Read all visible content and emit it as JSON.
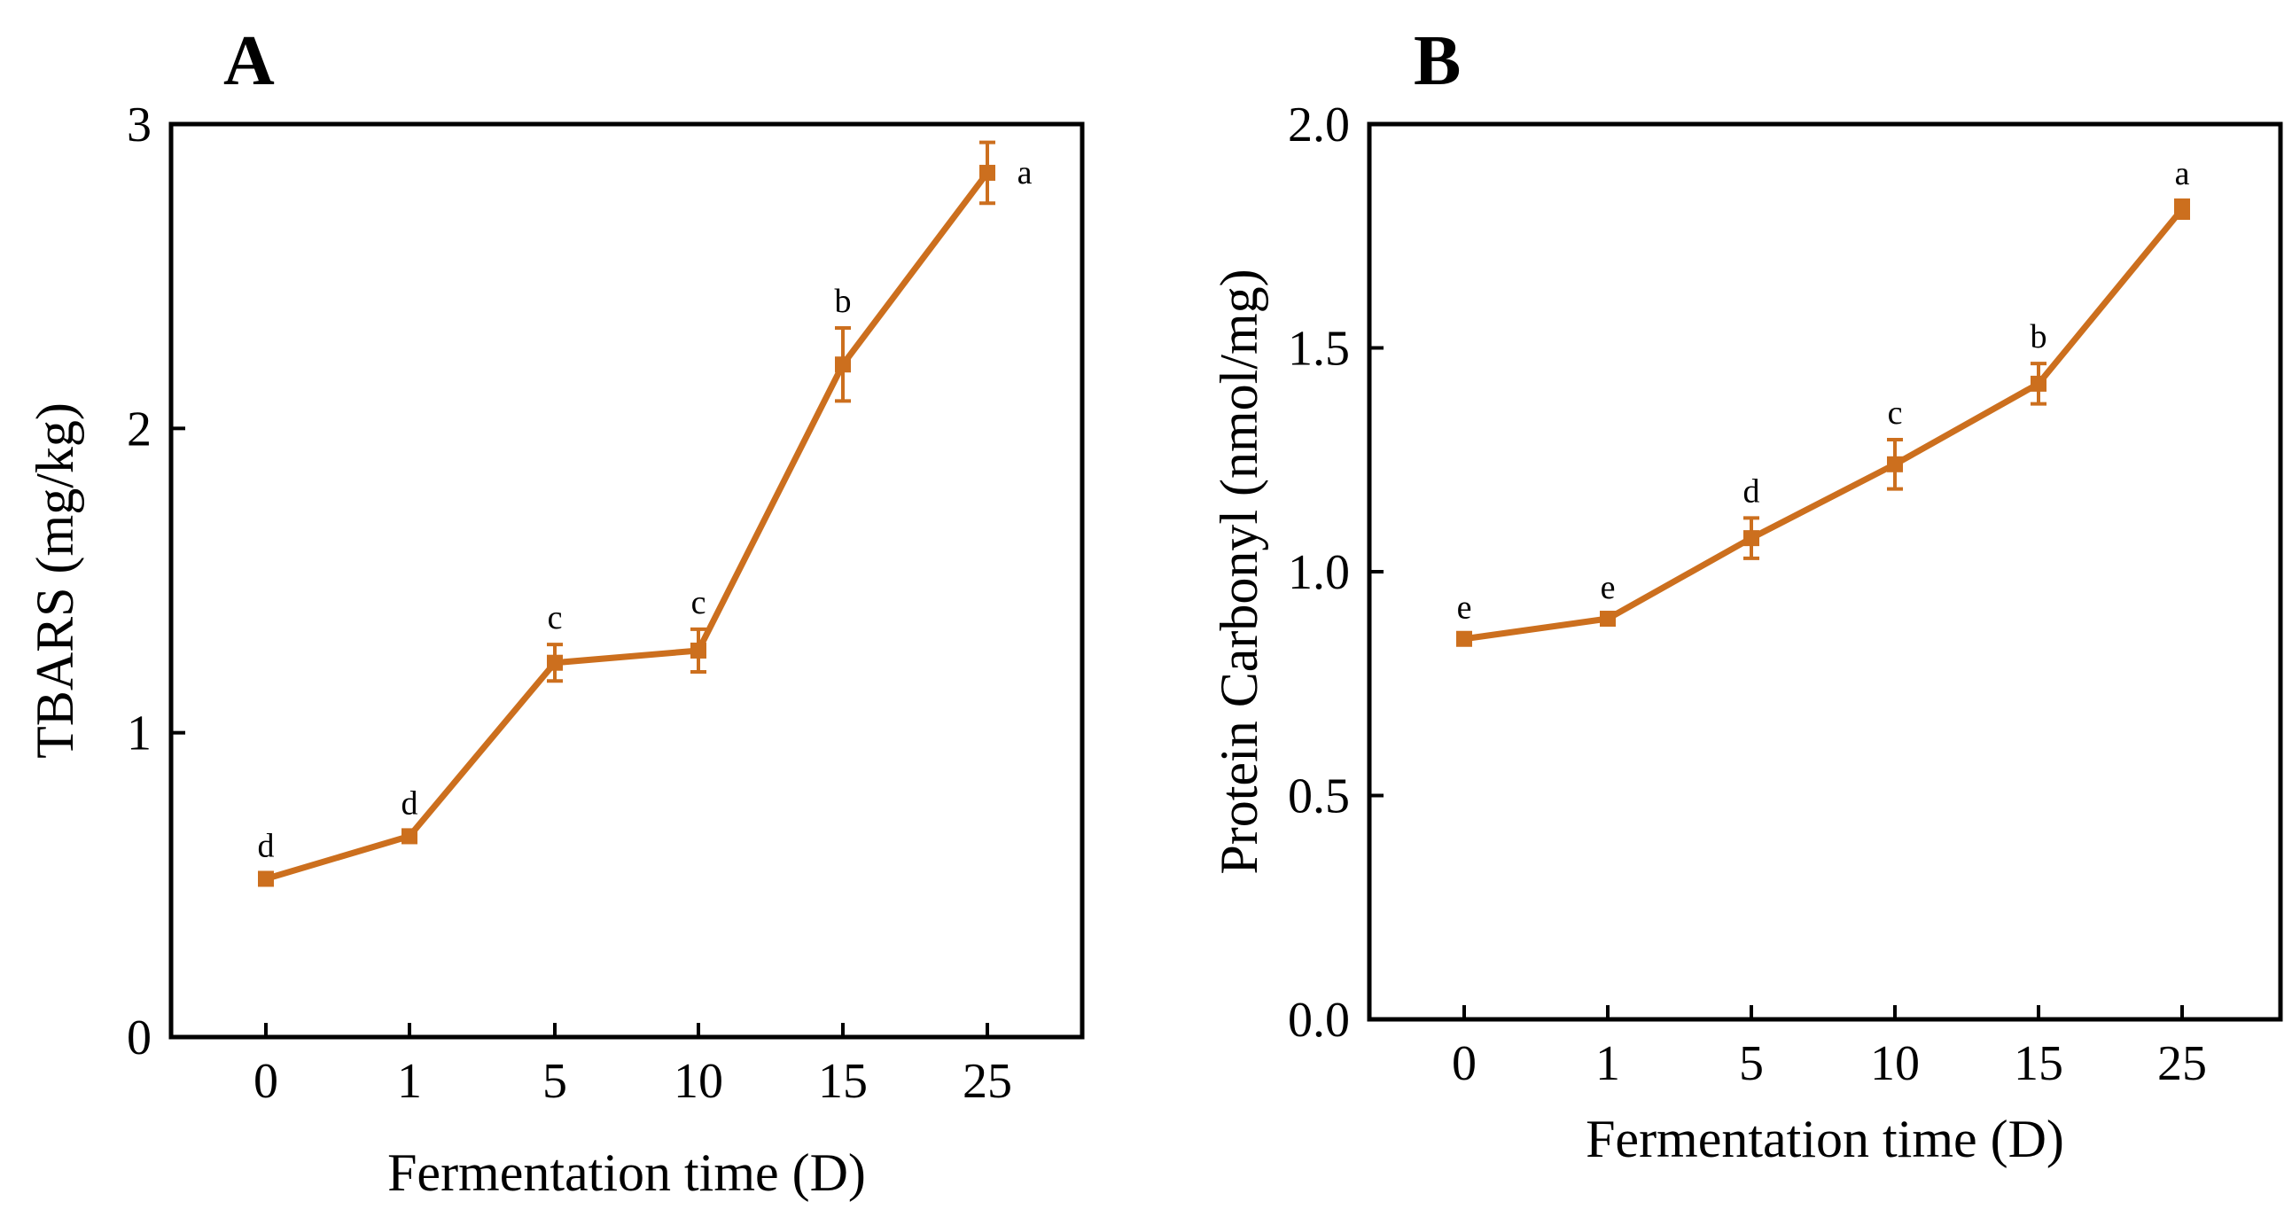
{
  "figure": {
    "colors": {
      "series": "#cc6f1e",
      "axis": "#000000",
      "background": "#ffffff"
    }
  },
  "chart_data": [
    {
      "panel": "A",
      "type": "line",
      "title": "",
      "xlabel": "Fermentation time (D)",
      "ylabel": "TBARS (mg/kg)",
      "categories": [
        "0",
        "1",
        "5",
        "10",
        "15",
        "25"
      ],
      "ylim": [
        0,
        3
      ],
      "yticks": [
        0,
        1,
        2,
        3
      ],
      "ytick_labels": [
        "0",
        "1",
        "2",
        "3"
      ],
      "grid": false,
      "series": [
        {
          "name": "TBARS",
          "values": [
            0.52,
            0.66,
            1.23,
            1.27,
            2.21,
            2.84
          ],
          "errors": [
            0.02,
            0.02,
            0.06,
            0.07,
            0.12,
            0.1
          ],
          "labels": [
            "d",
            "d",
            "c",
            "c",
            "b",
            "a"
          ]
        }
      ]
    },
    {
      "panel": "B",
      "type": "line",
      "title": "",
      "xlabel": "Fermentation time (D)",
      "ylabel": "Protein Carbonyl (nmol/mg)",
      "categories": [
        "0",
        "1",
        "5",
        "10",
        "15",
        "25"
      ],
      "ylim": [
        0,
        2
      ],
      "yticks": [
        0,
        0.5,
        1,
        1.5,
        2
      ],
      "ytick_labels": [
        "0.0",
        "0.5",
        "1.0",
        "1.5",
        "2.0"
      ],
      "grid": false,
      "series": [
        {
          "name": "Protein Carbonyl",
          "values": [
            0.85,
            0.895,
            1.075,
            1.24,
            1.42,
            1.81
          ],
          "errors": [
            0.01,
            0.01,
            0.045,
            0.055,
            0.045,
            0.02
          ],
          "labels": [
            "e",
            "e",
            "d",
            "c",
            "b",
            "a"
          ]
        }
      ]
    }
  ]
}
